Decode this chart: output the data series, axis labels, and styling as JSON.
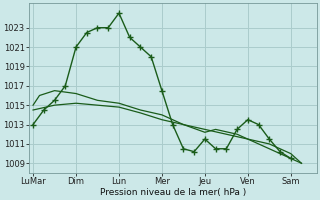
{
  "bg_color": "#cce8e8",
  "grid_color": "#aacccc",
  "line_color": "#1a5c1a",
  "ylabel": "Pression niveau de la mer( hPa )",
  "ylim": [
    1008,
    1025.5
  ],
  "yticks": [
    1009,
    1011,
    1013,
    1015,
    1017,
    1019,
    1021,
    1023
  ],
  "day_labels": [
    "LuMar",
    "Dim",
    "Lun",
    "Mer",
    "Jeu",
    "Ven",
    "Sam"
  ],
  "day_positions": [
    0,
    2,
    4,
    6,
    8,
    10,
    12
  ],
  "xlim": [
    -0.2,
    13.2
  ],
  "series1_x": [
    0,
    0.5,
    1.0,
    1.5,
    2.0,
    2.5,
    3.0,
    3.5,
    4.0,
    4.5,
    5.0,
    5.5,
    6.0,
    6.5,
    7.0,
    7.5,
    8.0,
    8.5,
    9.0,
    9.5,
    10.0,
    10.5,
    11.0,
    11.5,
    12.0
  ],
  "series1_y": [
    1013,
    1014.5,
    1015.5,
    1017,
    1021,
    1022.5,
    1023,
    1023,
    1024.5,
    1022,
    1021,
    1020.0,
    1016.5,
    1013,
    1010.5,
    1010.2,
    1011.5,
    1010.5,
    1010.5,
    1012.5,
    1013.5,
    1013,
    1011.5,
    1010.2,
    1009.5
  ],
  "series2_x": [
    0,
    0.3,
    1.0,
    2.0,
    3.0,
    4.0,
    5.0,
    6.0,
    7.0,
    8.0,
    8.5,
    9.5,
    10.5,
    11.5,
    12.5
  ],
  "series2_y": [
    1015,
    1016,
    1016.5,
    1016.2,
    1015.5,
    1015.2,
    1014.5,
    1014.0,
    1013.0,
    1012.2,
    1012.5,
    1012.0,
    1011.0,
    1010.0,
    1009.0
  ],
  "series3_x": [
    0,
    1,
    2,
    3,
    4,
    5,
    6,
    7,
    8,
    9,
    10,
    11,
    12,
    12.5
  ],
  "series3_y": [
    1014.5,
    1015,
    1015.2,
    1015.0,
    1014.8,
    1014.2,
    1013.5,
    1013.0,
    1012.5,
    1012.0,
    1011.5,
    1011.0,
    1010.0,
    1009.0
  ]
}
